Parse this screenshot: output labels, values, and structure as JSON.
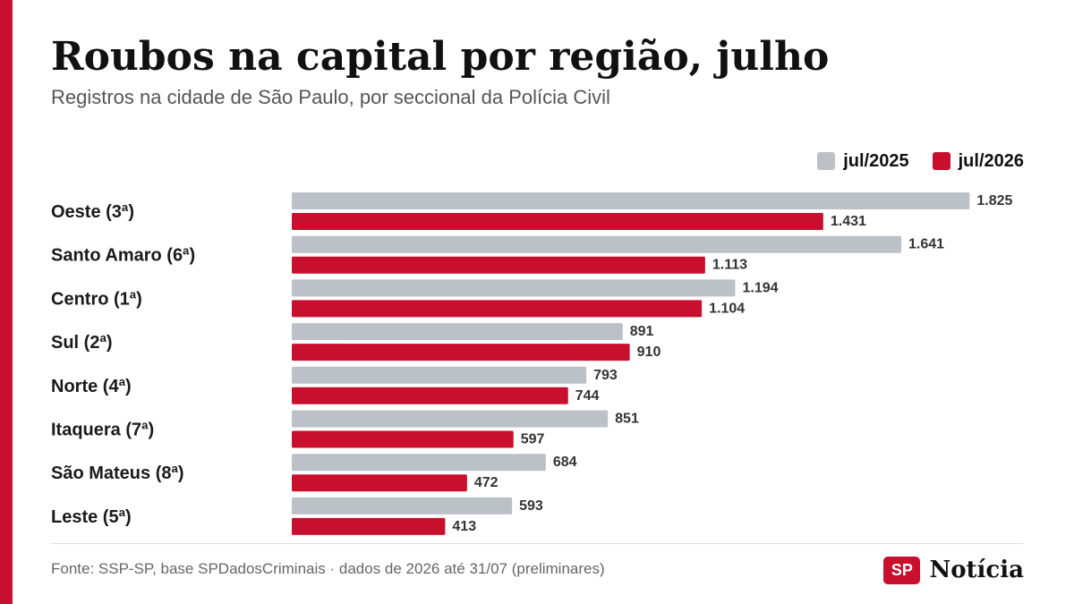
{
  "chart_data": {
    "type": "bar",
    "orientation": "horizontal",
    "title": "Roubos na capital por região, julho",
    "subtitle": "Registros na cidade de São Paulo, por seccional da Polícia Civil",
    "xlabel": "",
    "ylabel": "",
    "categories": [
      "Oeste (3ª)",
      "Santo Amaro (6ª)",
      "Centro (1ª)",
      "Sul (2ª)",
      "Norte (4ª)",
      "Itaquera (7ª)",
      "São Mateus (8ª)",
      "Leste (5ª)"
    ],
    "series": [
      {
        "name": "jul/2025",
        "color": "#bcc1c7",
        "values": [
          1825,
          1641,
          1194,
          891,
          793,
          851,
          684,
          593
        ],
        "labels": [
          "1.825",
          "1.641",
          "1.194",
          "891",
          "793",
          "851",
          "684",
          "593"
        ]
      },
      {
        "name": "jul/2026",
        "color": "#c8102e",
        "values": [
          1431,
          1113,
          1104,
          910,
          744,
          597,
          472,
          413
        ],
        "labels": [
          "1.431",
          "1.113",
          "1.104",
          "910",
          "744",
          "597",
          "472",
          "413"
        ]
      }
    ],
    "xlim": [
      0,
      2000
    ],
    "grid": false,
    "legend_position": "top-right"
  },
  "footer": {
    "source": "Fonte: SSP-SP, base SPDadosCriminais · dados de 2026 até 31/07 (preliminares)"
  },
  "logo": {
    "badge": "SP",
    "name": "Notícia"
  },
  "colors": {
    "accent": "#c8102e",
    "title": "#111111",
    "muted": "#555555"
  }
}
